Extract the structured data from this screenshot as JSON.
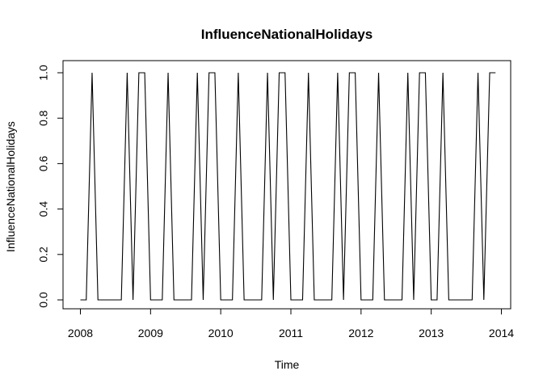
{
  "chart_data": {
    "type": "line",
    "title": "InfluenceNationalHolidays",
    "xlabel": "Time",
    "ylabel": "InfluenceNationalHolidays",
    "xlim": [
      2008,
      2014
    ],
    "ylim": [
      0,
      1
    ],
    "x_ticks": [
      2008,
      2009,
      2010,
      2011,
      2012,
      2013,
      2014
    ],
    "y_ticks": [
      0.0,
      0.2,
      0.4,
      0.6,
      0.8,
      1.0
    ],
    "y_tick_labels": [
      "0.0",
      "0.2",
      "0.4",
      "0.6",
      "0.8",
      "1.0"
    ],
    "frequency": 12,
    "start": 2008.0,
    "values": [
      0,
      0,
      1,
      0,
      0,
      0,
      0,
      0,
      1,
      0,
      1,
      1,
      0,
      0,
      0,
      1,
      0,
      0,
      0,
      0,
      1,
      0,
      1,
      1,
      0,
      0,
      0,
      1,
      0,
      0,
      0,
      0,
      1,
      0,
      1,
      1,
      0,
      0,
      0,
      1,
      0,
      0,
      0,
      0,
      1,
      0,
      1,
      1,
      0,
      0,
      0,
      1,
      0,
      0,
      0,
      0,
      1,
      0,
      1,
      1,
      0,
      0,
      1,
      0,
      0,
      0,
      0,
      0,
      1,
      0,
      1,
      1
    ],
    "color": "#000000",
    "grid": false,
    "legend": "none"
  }
}
